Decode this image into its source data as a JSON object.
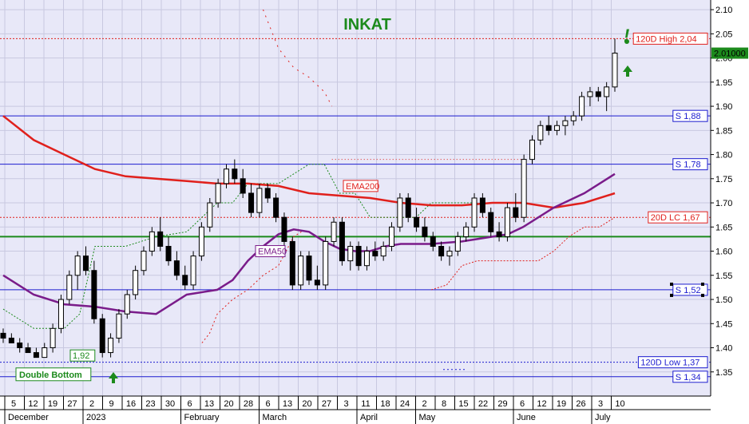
{
  "chart_data": {
    "type": "candlestick",
    "title": "INKAT",
    "ylim": [
      1.3,
      2.12
    ],
    "y_ticks": [
      "2.10",
      "2.05",
      "2.00",
      "1.95",
      "1.90",
      "1.85",
      "1.80",
      "1.75",
      "1.70",
      "1.65",
      "1.60",
      "1.55",
      "1.50",
      "1.45",
      "1.40",
      "1.35"
    ],
    "y_tick_values": [
      2.1,
      2.05,
      2.0,
      1.95,
      1.9,
      1.85,
      1.8,
      1.75,
      1.7,
      1.65,
      1.6,
      1.55,
      1.5,
      1.45,
      1.4,
      1.35
    ],
    "x_day_labels": [
      "5",
      "12",
      "19",
      "27",
      "2",
      "9",
      "16",
      "23",
      "30",
      "6",
      "13",
      "20",
      "28",
      "6",
      "13",
      "20",
      "27",
      "3",
      "11",
      "18",
      "24",
      "2",
      "8",
      "15",
      "22",
      "29",
      "6",
      "12",
      "19",
      "26",
      "3",
      "10"
    ],
    "x_months": [
      {
        "label": "December",
        "at": 0
      },
      {
        "label": "2023",
        "at": 4
      },
      {
        "label": "February",
        "at": 9
      },
      {
        "label": "March",
        "at": 13
      },
      {
        "label": "April",
        "at": 18
      },
      {
        "label": "May",
        "at": 21
      },
      {
        "label": "June",
        "at": 26
      },
      {
        "label": "July",
        "at": 30
      }
    ],
    "last_price": "2.01000",
    "levels": [
      {
        "name": "high120",
        "label": "120D High 2,04",
        "value": 2.04,
        "color": "#e0201c",
        "style": "dotted"
      },
      {
        "name": "s188",
        "label": "S 1,88",
        "value": 1.88,
        "color": "#1c1ccf",
        "style": "solid"
      },
      {
        "name": "s178",
        "label": "S 1,78",
        "value": 1.78,
        "color": "#1c1ccf",
        "style": "solid"
      },
      {
        "name": "lc20",
        "label": "20D LC 1,67",
        "value": 1.67,
        "color": "#e0201c",
        "style": "dotted"
      },
      {
        "name": "green163",
        "label": "",
        "value": 1.63,
        "color": "#1c8a1c",
        "style": "solid"
      },
      {
        "name": "s152",
        "label": "S 1,52",
        "value": 1.52,
        "color": "#1c1ccf",
        "style": "solid"
      },
      {
        "name": "low120",
        "label": "120D Low 1,37",
        "value": 1.37,
        "color": "#1c1ccf",
        "style": "dotted"
      },
      {
        "name": "s134",
        "label": "S 1,34",
        "value": 1.34,
        "color": "#1c1ccf",
        "style": "solid"
      }
    ],
    "annotations": {
      "ema200_label": "EMA200",
      "ema50_label": "EMA50",
      "double_bottom": "Double Bottom",
      "value_192": "1,92",
      "exclamation": "!"
    },
    "ema200": [
      [
        0,
        1.88
      ],
      [
        4,
        1.83
      ],
      [
        8,
        1.8
      ],
      [
        12,
        1.77
      ],
      [
        16,
        1.755
      ],
      [
        20,
        1.75
      ],
      [
        24,
        1.745
      ],
      [
        28,
        1.74
      ],
      [
        32,
        1.74
      ],
      [
        36,
        1.735
      ],
      [
        40,
        1.72
      ],
      [
        44,
        1.715
      ],
      [
        48,
        1.71
      ],
      [
        52,
        1.7
      ],
      [
        56,
        1.695
      ],
      [
        60,
        1.695
      ],
      [
        64,
        1.7
      ],
      [
        68,
        1.7
      ],
      [
        72,
        1.69
      ],
      [
        76,
        1.7
      ],
      [
        80,
        1.72
      ]
    ],
    "ema50": [
      [
        0,
        1.55
      ],
      [
        4,
        1.51
      ],
      [
        8,
        1.49
      ],
      [
        12,
        1.485
      ],
      [
        16,
        1.475
      ],
      [
        20,
        1.47
      ],
      [
        24,
        1.51
      ],
      [
        28,
        1.52
      ],
      [
        30,
        1.54
      ],
      [
        32,
        1.58
      ],
      [
        34,
        1.61
      ],
      [
        36,
        1.635
      ],
      [
        38,
        1.645
      ],
      [
        40,
        1.64
      ],
      [
        42,
        1.62
      ],
      [
        44,
        1.605
      ],
      [
        46,
        1.6
      ],
      [
        48,
        1.6
      ],
      [
        50,
        1.61
      ],
      [
        52,
        1.615
      ],
      [
        56,
        1.615
      ],
      [
        60,
        1.62
      ],
      [
        62,
        1.625
      ],
      [
        66,
        1.635
      ],
      [
        68,
        1.65
      ],
      [
        72,
        1.69
      ],
      [
        76,
        1.72
      ],
      [
        80,
        1.76
      ]
    ],
    "stop_green": [
      [
        0,
        1.48
      ],
      [
        4,
        1.44
      ],
      [
        8,
        1.44
      ],
      [
        10,
        1.47
      ],
      [
        12,
        1.61
      ],
      [
        16,
        1.61
      ],
      [
        20,
        1.63
      ],
      [
        24,
        1.64
      ],
      [
        28,
        1.7
      ],
      [
        30,
        1.7
      ],
      [
        32,
        1.74
      ],
      [
        34,
        1.74
      ],
      [
        36,
        1.74
      ],
      [
        40,
        1.78
      ],
      [
        42,
        1.78
      ],
      [
        44,
        1.72
      ],
      [
        46,
        1.72
      ],
      [
        48,
        1.67
      ],
      [
        50,
        1.67
      ],
      [
        52,
        1.67
      ],
      [
        54,
        1.67
      ],
      [
        56,
        1.7
      ],
      [
        58,
        1.7
      ],
      [
        60,
        1.7
      ],
      [
        62,
        1.7
      ]
    ],
    "stop_red_up": [
      [
        26,
        1.41
      ],
      [
        27,
        1.43
      ],
      [
        28,
        1.47
      ],
      [
        30,
        1.5
      ],
      [
        32,
        1.52
      ],
      [
        34,
        1.55
      ],
      [
        36,
        1.57
      ],
      [
        38,
        1.63
      ],
      [
        39,
        1.64
      ]
    ],
    "stop_red_down": [
      [
        34,
        2.1
      ],
      [
        36,
        2.02
      ],
      [
        38,
        1.98
      ],
      [
        40,
        1.96
      ],
      [
        42,
        1.93
      ],
      [
        43,
        1.9
      ]
    ],
    "stop_red_low": [
      [
        56,
        1.52
      ],
      [
        58,
        1.53
      ],
      [
        60,
        1.57
      ],
      [
        62,
        1.58
      ],
      [
        64,
        1.58
      ],
      [
        66,
        1.58
      ],
      [
        70,
        1.58
      ],
      [
        72,
        1.6
      ],
      [
        74,
        1.63
      ],
      [
        76,
        1.65
      ],
      [
        78,
        1.65
      ],
      [
        80,
        1.67
      ]
    ],
    "stop_red_mid": [
      [
        43,
        1.79
      ],
      [
        52,
        1.79
      ],
      [
        62,
        1.79
      ],
      [
        68,
        1.79
      ]
    ],
    "candles": [
      [
        1.43,
        1.44,
        1.41,
        1.42
      ],
      [
        1.42,
        1.43,
        1.41,
        1.41
      ],
      [
        1.41,
        1.42,
        1.39,
        1.4
      ],
      [
        1.4,
        1.41,
        1.39,
        1.39
      ],
      [
        1.39,
        1.4,
        1.38,
        1.38
      ],
      [
        1.38,
        1.41,
        1.38,
        1.4
      ],
      [
        1.4,
        1.45,
        1.39,
        1.44
      ],
      [
        1.44,
        1.51,
        1.43,
        1.5
      ],
      [
        1.5,
        1.56,
        1.49,
        1.55
      ],
      [
        1.55,
        1.6,
        1.52,
        1.59
      ],
      [
        1.59,
        1.61,
        1.55,
        1.56
      ],
      [
        1.56,
        1.58,
        1.45,
        1.46
      ],
      [
        1.46,
        1.47,
        1.38,
        1.39
      ],
      [
        1.39,
        1.43,
        1.38,
        1.42
      ],
      [
        1.42,
        1.48,
        1.41,
        1.47
      ],
      [
        1.47,
        1.52,
        1.46,
        1.51
      ],
      [
        1.51,
        1.57,
        1.5,
        1.56
      ],
      [
        1.56,
        1.61,
        1.55,
        1.6
      ],
      [
        1.6,
        1.65,
        1.59,
        1.64
      ],
      [
        1.64,
        1.67,
        1.6,
        1.61
      ],
      [
        1.61,
        1.63,
        1.57,
        1.58
      ],
      [
        1.58,
        1.6,
        1.54,
        1.55
      ],
      [
        1.55,
        1.57,
        1.52,
        1.53
      ],
      [
        1.53,
        1.6,
        1.52,
        1.59
      ],
      [
        1.59,
        1.66,
        1.58,
        1.65
      ],
      [
        1.65,
        1.71,
        1.64,
        1.7
      ],
      [
        1.7,
        1.75,
        1.69,
        1.74
      ],
      [
        1.74,
        1.78,
        1.73,
        1.77
      ],
      [
        1.77,
        1.79,
        1.74,
        1.75
      ],
      [
        1.75,
        1.77,
        1.71,
        1.72
      ],
      [
        1.72,
        1.74,
        1.67,
        1.68
      ],
      [
        1.68,
        1.74,
        1.67,
        1.73
      ],
      [
        1.73,
        1.74,
        1.7,
        1.71
      ],
      [
        1.71,
        1.72,
        1.66,
        1.67
      ],
      [
        1.67,
        1.68,
        1.61,
        1.62
      ],
      [
        1.62,
        1.63,
        1.52,
        1.53
      ],
      [
        1.53,
        1.6,
        1.52,
        1.59
      ],
      [
        1.59,
        1.6,
        1.53,
        1.54
      ],
      [
        1.54,
        1.57,
        1.52,
        1.53
      ],
      [
        1.53,
        1.63,
        1.52,
        1.62
      ],
      [
        1.62,
        1.67,
        1.61,
        1.66
      ],
      [
        1.66,
        1.67,
        1.57,
        1.58
      ],
      [
        1.58,
        1.62,
        1.56,
        1.61
      ],
      [
        1.61,
        1.62,
        1.56,
        1.57
      ],
      [
        1.57,
        1.61,
        1.56,
        1.6
      ],
      [
        1.6,
        1.62,
        1.58,
        1.59
      ],
      [
        1.59,
        1.62,
        1.58,
        1.61
      ],
      [
        1.61,
        1.66,
        1.6,
        1.65
      ],
      [
        1.65,
        1.72,
        1.64,
        1.71
      ],
      [
        1.71,
        1.72,
        1.66,
        1.67
      ],
      [
        1.67,
        1.69,
        1.64,
        1.65
      ],
      [
        1.65,
        1.67,
        1.62,
        1.63
      ],
      [
        1.63,
        1.64,
        1.6,
        1.61
      ],
      [
        1.61,
        1.62,
        1.58,
        1.59
      ],
      [
        1.59,
        1.61,
        1.57,
        1.6
      ],
      [
        1.6,
        1.64,
        1.59,
        1.63
      ],
      [
        1.63,
        1.66,
        1.62,
        1.65
      ],
      [
        1.65,
        1.72,
        1.64,
        1.71
      ],
      [
        1.71,
        1.72,
        1.67,
        1.68
      ],
      [
        1.68,
        1.69,
        1.63,
        1.64
      ],
      [
        1.64,
        1.66,
        1.62,
        1.63
      ],
      [
        1.63,
        1.7,
        1.62,
        1.69
      ],
      [
        1.69,
        1.72,
        1.66,
        1.67
      ],
      [
        1.67,
        1.8,
        1.66,
        1.79
      ],
      [
        1.79,
        1.84,
        1.78,
        1.83
      ],
      [
        1.83,
        1.87,
        1.82,
        1.86
      ],
      [
        1.86,
        1.88,
        1.84,
        1.85
      ],
      [
        1.85,
        1.87,
        1.84,
        1.86
      ],
      [
        1.86,
        1.88,
        1.84,
        1.87
      ],
      [
        1.87,
        1.89,
        1.86,
        1.88
      ],
      [
        1.88,
        1.93,
        1.87,
        1.92
      ],
      [
        1.92,
        1.94,
        1.9,
        1.93
      ],
      [
        1.93,
        1.94,
        1.91,
        1.92
      ],
      [
        1.92,
        1.95,
        1.89,
        1.94
      ],
      [
        1.94,
        2.04,
        1.93,
        2.01
      ]
    ]
  }
}
